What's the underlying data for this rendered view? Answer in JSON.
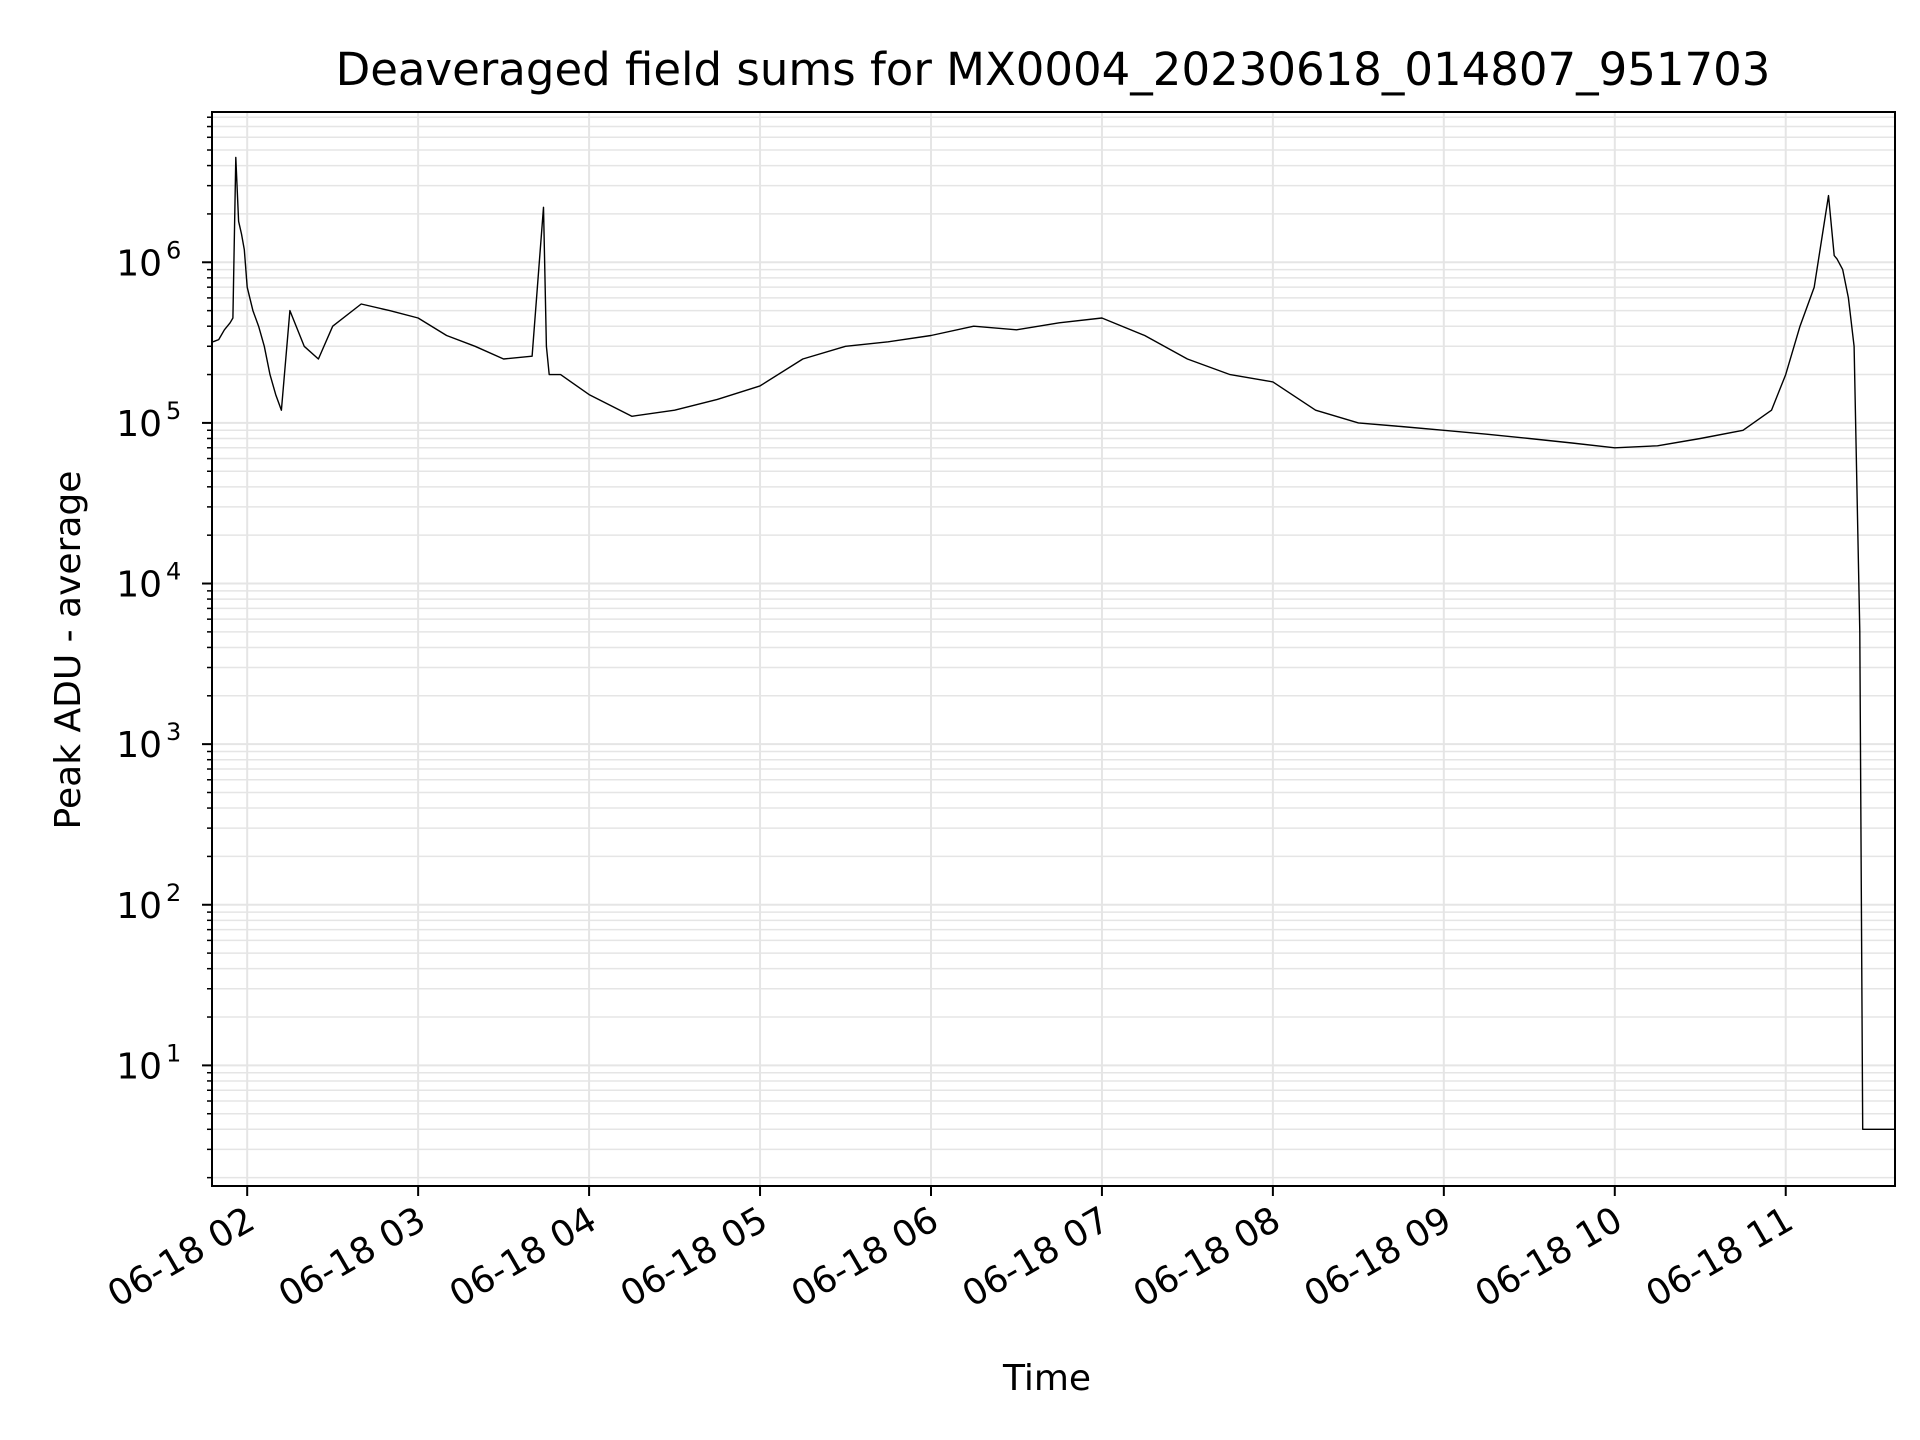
{
  "chart_data": {
    "type": "line",
    "title": "Deaveraged field sums for MX0004_20230618_014807_951703",
    "xlabel": "Time",
    "ylabel": "Peak ADU - average",
    "yscale": "log",
    "xlim": [
      "06-18 01:48",
      "06-18 11:38"
    ],
    "ylim": [
      1.8,
      8500000
    ],
    "grid": true,
    "line_color": "#000000",
    "grid_color": "#e5e5e5",
    "x_ticks": [
      {
        "value": "06-18 02:00",
        "label": "06-18 02"
      },
      {
        "value": "06-18 03:00",
        "label": "06-18 03"
      },
      {
        "value": "06-18 04:00",
        "label": "06-18 04"
      },
      {
        "value": "06-18 05:00",
        "label": "06-18 05"
      },
      {
        "value": "06-18 06:00",
        "label": "06-18 06"
      },
      {
        "value": "06-18 07:00",
        "label": "06-18 07"
      },
      {
        "value": "06-18 08:00",
        "label": "06-18 08"
      },
      {
        "value": "06-18 09:00",
        "label": "06-18 09"
      },
      {
        "value": "06-18 10:00",
        "label": "06-18 10"
      },
      {
        "value": "06-18 11:00",
        "label": "06-18 11"
      }
    ],
    "y_ticks": [
      {
        "value": 10,
        "base": "10",
        "exp": "1"
      },
      {
        "value": 100,
        "base": "10",
        "exp": "2"
      },
      {
        "value": 1000,
        "base": "10",
        "exp": "3"
      },
      {
        "value": 10000,
        "base": "10",
        "exp": "4"
      },
      {
        "value": 100000,
        "base": "10",
        "exp": "5"
      },
      {
        "value": 1000000,
        "base": "10",
        "exp": "6"
      }
    ],
    "series": [
      {
        "x": [
          "06-18 01:48",
          "06-18 01:50",
          "06-18 01:52",
          "06-18 01:54",
          "06-18 01:55",
          "06-18 01:56",
          "06-18 01:57",
          "06-18 01:58",
          "06-18 01:59",
          "06-18 02:00",
          "06-18 02:02",
          "06-18 02:04",
          "06-18 02:06",
          "06-18 02:08",
          "06-18 02:10",
          "06-18 02:12",
          "06-18 02:15",
          "06-18 02:20",
          "06-18 02:25",
          "06-18 02:30",
          "06-18 02:40",
          "06-18 02:50",
          "06-18 03:00",
          "06-18 03:10",
          "06-18 03:20",
          "06-18 03:30",
          "06-18 03:40",
          "06-18 03:44",
          "06-18 03:45",
          "06-18 03:46",
          "06-18 03:50",
          "06-18 04:00",
          "06-18 04:15",
          "06-18 04:30",
          "06-18 04:45",
          "06-18 05:00",
          "06-18 05:15",
          "06-18 05:30",
          "06-18 05:45",
          "06-18 06:00",
          "06-18 06:15",
          "06-18 06:30",
          "06-18 06:45",
          "06-18 07:00",
          "06-18 07:15",
          "06-18 07:30",
          "06-18 07:45",
          "06-18 08:00",
          "06-18 08:15",
          "06-18 08:30",
          "06-18 08:45",
          "06-18 09:00",
          "06-18 09:15",
          "06-18 09:30",
          "06-18 09:45",
          "06-18 10:00",
          "06-18 10:15",
          "06-18 10:30",
          "06-18 10:45",
          "06-18 10:55",
          "06-18 11:00",
          "06-18 11:05",
          "06-18 11:10",
          "06-18 11:15",
          "06-18 11:17",
          "06-18 11:18",
          "06-18 11:20",
          "06-18 11:22",
          "06-18 11:24",
          "06-18 11:26",
          "06-18 11:27",
          "06-18 11:28",
          "06-18 11:30",
          "06-18 11:38"
        ],
        "y": [
          320000,
          330000,
          380000,
          420000,
          450000,
          4500000,
          1800000,
          1500000,
          1200000,
          700000,
          500000,
          400000,
          300000,
          200000,
          150000,
          120000,
          500000,
          300000,
          250000,
          400000,
          550000,
          500000,
          450000,
          350000,
          300000,
          250000,
          260000,
          2200000,
          300000,
          200000,
          200000,
          150000,
          110000,
          120000,
          140000,
          170000,
          250000,
          300000,
          320000,
          350000,
          400000,
          380000,
          420000,
          450000,
          350000,
          250000,
          200000,
          180000,
          120000,
          100000,
          95000,
          90000,
          85000,
          80000,
          75000,
          70000,
          72000,
          80000,
          90000,
          120000,
          200000,
          400000,
          700000,
          2600000,
          1100000,
          1050000,
          900000,
          600000,
          300000,
          5000,
          4,
          4,
          4,
          4
        ]
      }
    ]
  }
}
